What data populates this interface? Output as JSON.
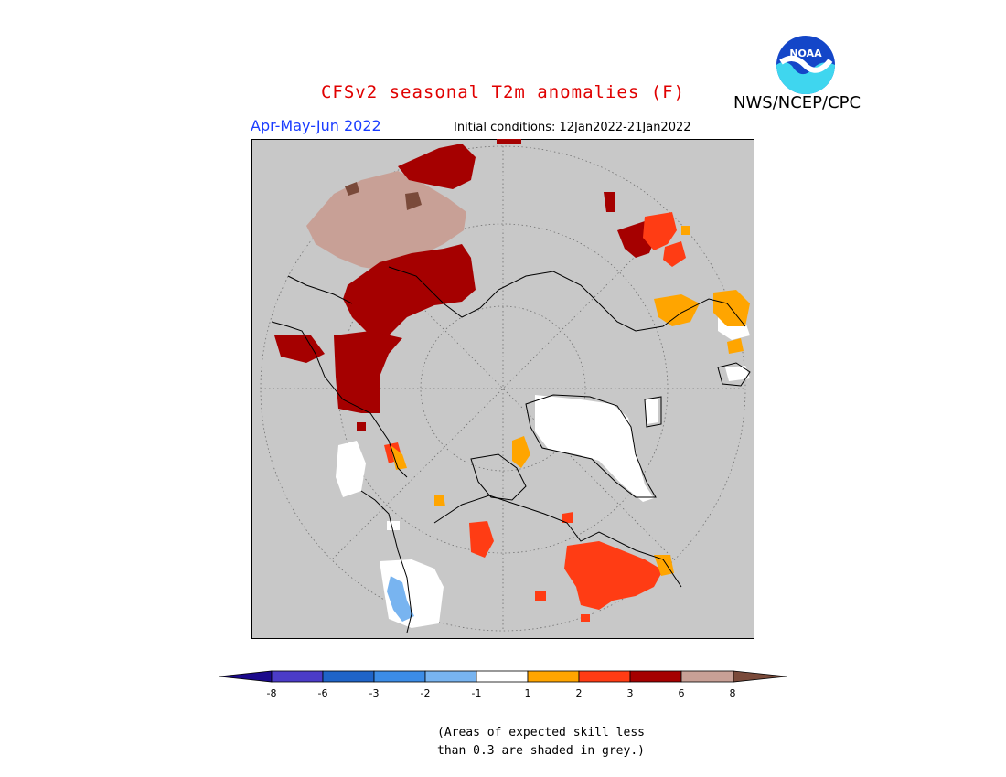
{
  "header": {
    "title": "CFSv2 seasonal T2m anomalies (F)",
    "agency": "NWS/NCEP/CPC",
    "logo_text": "NOAA",
    "season": "Apr-May-Jun 2022",
    "initial_conditions": "Initial conditions: 12Jan2022-21Jan2022"
  },
  "legend": {
    "ticks": [
      "-8",
      "-6",
      "-3",
      "-2",
      "-1",
      "1",
      "2",
      "3",
      "6",
      "8"
    ],
    "colors": [
      "#1c0a8c",
      "#4b3cc8",
      "#1f64c8",
      "#3c8ce6",
      "#78b4f0",
      "#ffffff",
      "#ffa500",
      "#ff3c14",
      "#a50000",
      "#c8a096",
      "#7a4a3a"
    ]
  },
  "note": {
    "line1": "(Areas of expected skill less",
    "line2": "than 0.3 are shaded in grey.)"
  },
  "map": {
    "background": "#c8c8c8",
    "projection": "north polar stereographic",
    "anomaly_colors": {
      "white_near_normal": "#ffffff",
      "orange": "#ffa500",
      "red": "#ff3c14",
      "dark_red": "#a50000",
      "light_brown": "#c8a096",
      "brown": "#7a4a3a",
      "light_blue": "#78b4f0"
    }
  }
}
